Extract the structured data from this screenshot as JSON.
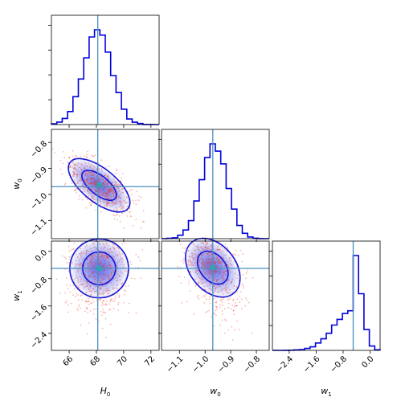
{
  "chart_data": {
    "type": "corner",
    "parameters": [
      "H0",
      "w0",
      "w1"
    ],
    "labels": {
      "H0": {
        "main": "H",
        "sub": "0"
      },
      "w0": {
        "main": "w",
        "sub": "0"
      },
      "w1": {
        "main": "w",
        "sub": "1"
      }
    },
    "ranges": {
      "H0": [
        64.7,
        72.6
      ],
      "w0": [
        -1.17,
        -0.75
      ],
      "w1": [
        -2.9,
        0.3
      ]
    },
    "ticks": {
      "H0": [
        66,
        68,
        70,
        72
      ],
      "w0": [
        -1.1,
        -1.0,
        -0.9,
        -0.8
      ],
      "w1": [
        -2.4,
        -1.6,
        -0.8,
        0.0
      ]
    },
    "tick_labels": {
      "H0": [
        "66",
        "68",
        "70",
        "72"
      ],
      "w0": [
        "−1.1",
        "−1.0",
        "−0.9",
        "−0.8"
      ],
      "w1": [
        "−2.4",
        "−1.6",
        "−0.8",
        "0.0"
      ]
    },
    "truth": {
      "H0": 68.1,
      "w0": -0.97,
      "w1": -0.5
    },
    "marginals": {
      "H0": {
        "mean": 68.1,
        "sd": 1.0,
        "bins": 20
      },
      "w0": {
        "mean": -0.965,
        "sd": 0.05,
        "bins": 20
      },
      "w1": {
        "peak": -0.5,
        "sd_left": 0.55,
        "sd_right": 0.22,
        "bins": 20
      }
    },
    "pairs": [
      {
        "x": "H0",
        "y": "w0",
        "center": [
          68.2,
          -0.965
        ],
        "correlation": -0.65,
        "sd": [
          1.1,
          0.05
        ]
      },
      {
        "x": "H0",
        "y": "w1",
        "center": [
          68.2,
          -0.5
        ],
        "correlation": 0.0,
        "sd": [
          1.05,
          0.42
        ]
      },
      {
        "x": "w0",
        "y": "w1",
        "center": [
          -0.97,
          -0.48
        ],
        "correlation": -0.35,
        "sd": [
          0.052,
          0.42
        ]
      }
    ],
    "colors": {
      "histogram": "#0000dd",
      "contour": "#1515d8",
      "density": "#3344ee",
      "samples": "#ee3322",
      "truth": "#4a8fc0"
    },
    "grid": false,
    "legend": "none"
  }
}
